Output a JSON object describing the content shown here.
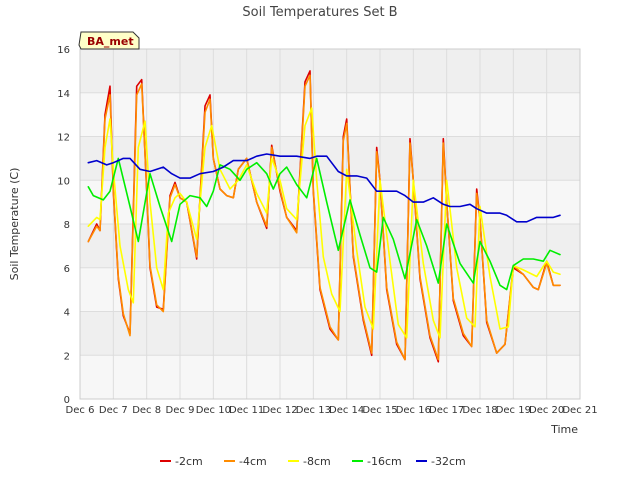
{
  "chart_data": {
    "type": "line",
    "title": "Soil Temperatures Set B",
    "xlabel": "Time",
    "ylabel": "Soil Temperature (C)",
    "station_label": "BA_met",
    "xlim": [
      6,
      21
    ],
    "ylim": [
      0,
      16
    ],
    "x_ticks": [
      6,
      7,
      8,
      9,
      10,
      11,
      12,
      13,
      14,
      15,
      16,
      17,
      18,
      19,
      20,
      21
    ],
    "x_tick_labels": [
      "Dec 6",
      "Dec 7",
      "Dec 8",
      "Dec 9",
      "Dec 10",
      "Dec 11",
      "Dec 12",
      "Dec 13",
      "Dec 14",
      "Dec 15",
      "Dec 16",
      "Dec 17",
      "Dec 18",
      "Dec 19",
      "Dec 20",
      "Dec 21"
    ],
    "y_ticks": [
      0,
      2,
      4,
      6,
      8,
      10,
      12,
      14,
      16
    ],
    "y_tick_labels": [
      "0",
      "2",
      "4",
      "6",
      "8",
      "10",
      "12",
      "14",
      "16"
    ],
    "grid": true,
    "legend_position": "bottom",
    "series": [
      {
        "name": "-2cm",
        "color": "#dd0000",
        "x": [
          6.25,
          6.5,
          6.6,
          6.75,
          6.9,
          7.0,
          7.15,
          7.3,
          7.5,
          7.7,
          7.85,
          8.0,
          8.1,
          8.3,
          8.5,
          8.7,
          8.85,
          9.0,
          9.2,
          9.5,
          9.75,
          9.9,
          10.0,
          10.2,
          10.4,
          10.6,
          10.75,
          11.0,
          11.3,
          11.6,
          11.75,
          12.0,
          12.2,
          12.5,
          12.75,
          12.9,
          13.0,
          13.2,
          13.5,
          13.75,
          13.9,
          14.0,
          14.2,
          14.5,
          14.75,
          14.9,
          15.0,
          15.2,
          15.5,
          15.75,
          15.9,
          16.0,
          16.2,
          16.5,
          16.75,
          16.9,
          17.0,
          17.2,
          17.5,
          17.75,
          17.9,
          18.0,
          18.2,
          18.5,
          18.75,
          19.0,
          19.3,
          19.6,
          19.75,
          20.0,
          20.2,
          20.4
        ],
        "y": [
          7.2,
          8.0,
          7.7,
          13.0,
          14.3,
          9.5,
          5.5,
          3.8,
          3.0,
          14.3,
          14.6,
          9.5,
          6.0,
          4.2,
          4.1,
          9.3,
          9.9,
          9.2,
          9.0,
          6.4,
          13.4,
          13.9,
          11.0,
          9.6,
          9.3,
          9.2,
          10.5,
          11.0,
          9.0,
          7.8,
          11.6,
          9.5,
          8.3,
          7.7,
          14.5,
          15.0,
          9.5,
          5.0,
          3.2,
          2.7,
          12.0,
          12.8,
          6.5,
          3.6,
          2.0,
          11.5,
          10.0,
          5.0,
          2.5,
          1.8,
          11.9,
          10.0,
          5.5,
          2.8,
          1.7,
          11.9,
          9.0,
          4.5,
          2.9,
          2.4,
          9.6,
          8.2,
          3.5,
          2.1,
          2.5,
          6.0,
          5.7,
          5.1,
          5.0,
          6.3,
          5.2,
          5.2
        ]
      },
      {
        "name": "-4cm",
        "color": "#ff8c00",
        "x": [
          6.25,
          6.5,
          6.6,
          6.75,
          6.9,
          7.0,
          7.15,
          7.3,
          7.5,
          7.7,
          7.85,
          8.0,
          8.1,
          8.3,
          8.5,
          8.7,
          8.85,
          9.0,
          9.2,
          9.5,
          9.75,
          9.9,
          10.0,
          10.2,
          10.4,
          10.6,
          10.75,
          11.0,
          11.3,
          11.6,
          11.75,
          12.0,
          12.2,
          12.5,
          12.75,
          12.9,
          13.0,
          13.2,
          13.5,
          13.75,
          13.9,
          14.0,
          14.2,
          14.5,
          14.75,
          14.9,
          15.0,
          15.2,
          15.5,
          15.75,
          15.9,
          16.0,
          16.2,
          16.5,
          16.75,
          16.9,
          17.0,
          17.2,
          17.5,
          17.75,
          17.9,
          18.0,
          18.2,
          18.5,
          18.75,
          19.0,
          19.3,
          19.6,
          19.75,
          20.0,
          20.2,
          20.4
        ],
        "y": [
          7.2,
          7.9,
          7.7,
          12.8,
          13.9,
          9.6,
          5.6,
          3.9,
          2.9,
          13.9,
          14.4,
          9.6,
          6.1,
          4.3,
          4.0,
          9.2,
          9.8,
          9.2,
          9.0,
          6.5,
          13.1,
          13.7,
          11.0,
          9.6,
          9.3,
          9.2,
          10.5,
          11.0,
          9.0,
          7.9,
          11.5,
          9.6,
          8.3,
          7.6,
          14.3,
          14.8,
          9.6,
          5.1,
          3.3,
          2.7,
          11.8,
          12.6,
          6.6,
          3.7,
          2.1,
          11.3,
          10.0,
          5.1,
          2.6,
          1.8,
          11.7,
          10.0,
          5.6,
          2.9,
          1.8,
          11.7,
          9.0,
          4.6,
          3.0,
          2.4,
          9.4,
          8.2,
          3.6,
          2.1,
          2.5,
          6.1,
          5.7,
          5.1,
          5.0,
          6.2,
          5.2,
          5.2
        ]
      },
      {
        "name": "-8cm",
        "color": "#ffff00",
        "x": [
          6.25,
          6.5,
          6.6,
          6.75,
          6.9,
          7.0,
          7.2,
          7.45,
          7.6,
          7.75,
          7.95,
          8.1,
          8.3,
          8.5,
          8.65,
          8.85,
          9.0,
          9.2,
          9.5,
          9.75,
          9.95,
          10.2,
          10.5,
          10.75,
          11.0,
          11.3,
          11.6,
          11.75,
          12.0,
          12.2,
          12.5,
          12.75,
          12.95,
          13.1,
          13.3,
          13.55,
          13.8,
          14.0,
          14.3,
          14.55,
          14.8,
          15.0,
          15.3,
          15.55,
          15.8,
          16.0,
          16.3,
          16.6,
          16.8,
          17.0,
          17.3,
          17.6,
          17.85,
          18.0,
          18.3,
          18.6,
          18.85,
          19.0,
          19.3,
          19.7,
          20.0,
          20.2,
          20.4
        ],
        "y": [
          7.9,
          8.3,
          8.2,
          11.5,
          12.8,
          10.5,
          7.0,
          5.0,
          4.4,
          11.5,
          12.7,
          9.0,
          6.0,
          5.0,
          8.5,
          9.2,
          9.4,
          9.0,
          7.3,
          11.5,
          12.5,
          10.5,
          9.6,
          10.0,
          10.7,
          9.4,
          8.5,
          11.0,
          10.0,
          8.7,
          8.2,
          12.5,
          13.3,
          10.0,
          6.5,
          4.8,
          4.0,
          10.5,
          6.8,
          4.2,
          3.2,
          10.0,
          6.3,
          3.4,
          2.8,
          10.0,
          6.2,
          3.6,
          2.8,
          10.0,
          6.0,
          3.7,
          3.3,
          8.8,
          5.6,
          3.2,
          3.3,
          6.1,
          5.9,
          5.6,
          6.3,
          5.8,
          5.7
        ]
      },
      {
        "name": "-16cm",
        "color": "#00ee00",
        "x": [
          6.25,
          6.4,
          6.7,
          6.9,
          7.15,
          7.5,
          7.75,
          8.1,
          8.4,
          8.75,
          9.0,
          9.3,
          9.6,
          9.8,
          10.0,
          10.2,
          10.5,
          10.8,
          11.0,
          11.3,
          11.6,
          11.8,
          12.0,
          12.2,
          12.5,
          12.8,
          13.1,
          13.4,
          13.75,
          14.1,
          14.4,
          14.7,
          14.9,
          15.1,
          15.4,
          15.75,
          16.1,
          16.4,
          16.75,
          17.0,
          17.4,
          17.8,
          18.0,
          18.3,
          18.6,
          18.8,
          19.0,
          19.3,
          19.6,
          19.9,
          20.1,
          20.4
        ],
        "y": [
          9.7,
          9.3,
          9.1,
          9.5,
          11.0,
          8.8,
          7.2,
          10.3,
          8.8,
          7.2,
          8.9,
          9.3,
          9.2,
          8.8,
          9.5,
          10.7,
          10.5,
          10.0,
          10.5,
          10.8,
          10.3,
          9.6,
          10.3,
          10.6,
          9.8,
          9.2,
          11.0,
          9.0,
          6.8,
          9.1,
          7.5,
          6.0,
          5.8,
          8.3,
          7.3,
          5.5,
          8.2,
          7.0,
          5.3,
          8.0,
          6.2,
          5.3,
          7.2,
          6.3,
          5.2,
          5.0,
          6.1,
          6.4,
          6.4,
          6.3,
          6.8,
          6.6
        ]
      },
      {
        "name": "-32cm",
        "color": "#0000cc",
        "x": [
          6.25,
          6.5,
          6.8,
          7.0,
          7.3,
          7.5,
          7.8,
          8.1,
          8.5,
          8.75,
          9.0,
          9.3,
          9.6,
          10.0,
          10.3,
          10.6,
          11.0,
          11.3,
          11.6,
          12.0,
          12.5,
          12.9,
          13.1,
          13.4,
          13.75,
          14.0,
          14.3,
          14.6,
          14.9,
          15.2,
          15.5,
          15.75,
          16.0,
          16.3,
          16.6,
          16.9,
          17.1,
          17.4,
          17.7,
          17.9,
          18.2,
          18.6,
          18.8,
          19.1,
          19.4,
          19.7,
          20.0,
          20.2,
          20.4
        ],
        "y": [
          10.8,
          10.9,
          10.7,
          10.8,
          11.0,
          11.0,
          10.5,
          10.4,
          10.6,
          10.3,
          10.1,
          10.1,
          10.3,
          10.4,
          10.6,
          10.9,
          10.9,
          11.1,
          11.2,
          11.1,
          11.1,
          11.0,
          11.1,
          11.1,
          10.4,
          10.2,
          10.2,
          10.1,
          9.5,
          9.5,
          9.5,
          9.3,
          9.0,
          9.0,
          9.2,
          8.9,
          8.8,
          8.8,
          8.9,
          8.7,
          8.5,
          8.5,
          8.4,
          8.1,
          8.1,
          8.3,
          8.3,
          8.3,
          8.4
        ]
      }
    ]
  }
}
